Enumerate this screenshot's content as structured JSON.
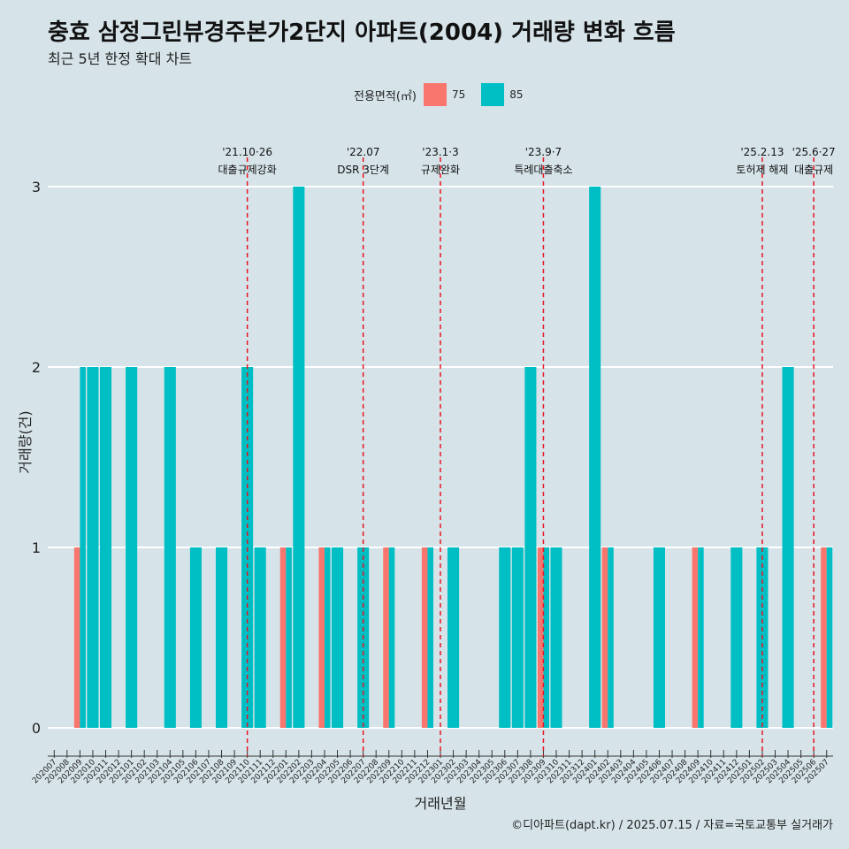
{
  "title": "충효 삼정그린뷰경주본가2단지 아파트(2004) 거래량 변화 흐름",
  "subtitle": "최근 5년 한정 확대 차트",
  "legend": {
    "title": "전용면적(㎡)",
    "items": [
      {
        "label": "75",
        "color": "#f8766d"
      },
      {
        "label": "85",
        "color": "#00bfc4"
      }
    ]
  },
  "caption": "©디아파트(dapt.kr) / 2025.07.15 / 자료=국토교통부 실거래가",
  "chart_data": {
    "type": "bar",
    "xlabel": "거래년월",
    "ylabel": "거래량(건)",
    "ylim": [
      0,
      3
    ],
    "yticks": [
      0,
      1,
      2,
      3
    ],
    "grid": true,
    "legend_position": "top",
    "categories": [
      "202007",
      "202008",
      "202009",
      "202010",
      "202011",
      "202012",
      "202101",
      "202102",
      "202103",
      "202104",
      "202105",
      "202106",
      "202107",
      "202108",
      "202109",
      "202110",
      "202111",
      "202112",
      "202201",
      "202202",
      "202203",
      "202204",
      "202205",
      "202206",
      "202207",
      "202208",
      "202209",
      "202210",
      "202211",
      "202212",
      "202301",
      "202302",
      "202303",
      "202304",
      "202305",
      "202306",
      "202307",
      "202308",
      "202309",
      "202310",
      "202311",
      "202312",
      "202401",
      "202402",
      "202403",
      "202404",
      "202405",
      "202406",
      "202407",
      "202408",
      "202409",
      "202410",
      "202411",
      "202412",
      "202501",
      "202502",
      "202503",
      "202504",
      "202505",
      "202506",
      "202507"
    ],
    "series": [
      {
        "name": "75",
        "color": "#f8766d",
        "values": [
          0,
          0,
          1,
          0,
          0,
          0,
          0,
          0,
          0,
          0,
          0,
          0,
          0,
          0,
          0,
          0,
          0,
          0,
          1,
          0,
          0,
          1,
          0,
          0,
          0,
          0,
          1,
          0,
          0,
          1,
          0,
          0,
          0,
          0,
          0,
          0,
          0,
          0,
          1,
          0,
          0,
          0,
          0,
          1,
          0,
          0,
          0,
          0,
          0,
          0,
          1,
          0,
          0,
          0,
          0,
          0,
          0,
          0,
          0,
          0,
          1
        ]
      },
      {
        "name": "85",
        "color": "#00bfc4",
        "values": [
          0,
          0,
          2,
          2,
          2,
          0,
          2,
          0,
          0,
          2,
          0,
          1,
          0,
          1,
          0,
          2,
          1,
          0,
          1,
          3,
          0,
          1,
          1,
          0,
          1,
          0,
          1,
          0,
          0,
          1,
          0,
          1,
          0,
          0,
          0,
          1,
          1,
          2,
          1,
          1,
          0,
          0,
          3,
          1,
          0,
          0,
          0,
          1,
          0,
          0,
          1,
          0,
          0,
          1,
          0,
          1,
          0,
          2,
          0,
          0,
          1
        ]
      }
    ],
    "annotations": [
      {
        "x": "202110",
        "date": "'21.10·26",
        "label": "대출규제강화"
      },
      {
        "x": "202207",
        "date": "'22.07",
        "label": "DSR 3단계"
      },
      {
        "x": "202301",
        "date": "'23.1·3",
        "label": "규제완화"
      },
      {
        "x": "202309",
        "date": "'23.9·7",
        "label": "특례대출축소"
      },
      {
        "x": "202502",
        "date": "'25.2.13",
        "label": "토허제 해제"
      },
      {
        "x": "202506",
        "date": "'25.6·27",
        "label": "대출규제"
      }
    ]
  }
}
